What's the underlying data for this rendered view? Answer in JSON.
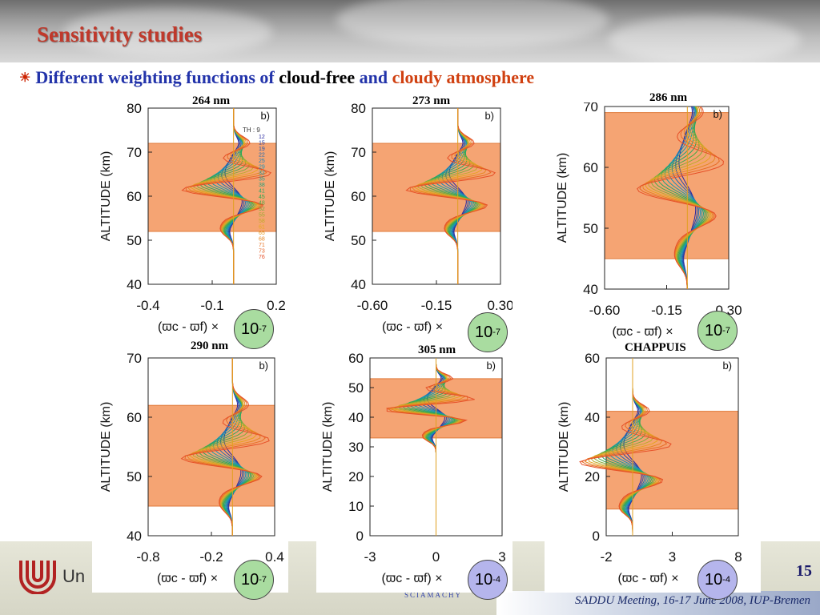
{
  "slide": {
    "title": "Sensitivity studies",
    "bullet": {
      "part1": "Different weighting functions of",
      "part2": "cloud-free",
      "part3": "and",
      "part4": "cloudy atmosphere"
    },
    "page_number": "15",
    "meeting": "SADDU Meeting, 16-17 June 2008, IUP-Bremen",
    "logo_text": "Un",
    "sciamachy": "SCIAMACHY"
  },
  "colors": {
    "title": "#c0392b",
    "bullet_blue": "#2233aa",
    "bullet_red": "#d04010",
    "cloud_band": "#f5a473",
    "badge_green": "#a9dca0",
    "badge_blue": "#b5b5ec"
  },
  "chart_data": [
    {
      "type": "line",
      "title": "264 nm",
      "panel_tag": "b)",
      "ylabel": "ALTITUDE (km)",
      "xlabel": "(ϖc - ϖf) ×",
      "scale_base": "10",
      "scale_exp": "-7",
      "badge_color": "green",
      "ylim": [
        40,
        80
      ],
      "yticks": [
        40,
        50,
        60,
        70,
        80
      ],
      "xlim": [
        -0.4,
        0.2
      ],
      "xticks": [
        "-0.4",
        "-0.1",
        "0.2"
      ],
      "cloud_band": [
        52,
        72
      ],
      "legend_title": "TH : 9",
      "legend": [
        "12",
        "15",
        "19",
        "22",
        "25",
        "29",
        "32",
        "35",
        "38",
        "41",
        "45",
        "48",
        "52",
        "55",
        "58",
        "61",
        "65",
        "68",
        "71",
        "73",
        "76"
      ]
    },
    {
      "type": "line",
      "title": "273 nm",
      "panel_tag": "b)",
      "ylabel": "ALTITUDE (km)",
      "xlabel": "(ϖc - ϖf) ×",
      "scale_base": "10",
      "scale_exp": "-7",
      "badge_color": "green",
      "ylim": [
        40,
        80
      ],
      "yticks": [
        40,
        50,
        60,
        70,
        80
      ],
      "xlim": [
        -0.6,
        0.3
      ],
      "xticks": [
        "-0.60",
        "-0.15",
        "0.30"
      ],
      "cloud_band": [
        52,
        72
      ]
    },
    {
      "type": "line",
      "title": "286 nm",
      "panel_tag": "b)",
      "ylabel": "ALTITUDE (km)",
      "xlabel": "(ϖc - ϖf) ×",
      "scale_base": "10",
      "scale_exp": "-7",
      "badge_color": "green",
      "ylim": [
        40,
        70
      ],
      "yticks": [
        40,
        50,
        60,
        70
      ],
      "xlim": [
        -0.6,
        0.3
      ],
      "xticks": [
        "-0.60",
        "-0.15",
        "0.30"
      ],
      "cloud_band": [
        45,
        69
      ]
    },
    {
      "type": "line",
      "title": "290 nm",
      "panel_tag": "b)",
      "ylabel": "ALTITUDE (km)",
      "xlabel": "(ϖc - ϖf) ×",
      "scale_base": "10",
      "scale_exp": "-7",
      "badge_color": "green",
      "ylim": [
        40,
        70
      ],
      "yticks": [
        40,
        50,
        60,
        70
      ],
      "xlim": [
        -0.8,
        0.4
      ],
      "xticks": [
        "-0.8",
        "-0.2",
        "0.4"
      ],
      "cloud_band": [
        45,
        62
      ]
    },
    {
      "type": "line",
      "title": "305 nm",
      "panel_tag": "b)",
      "ylabel": "ALTITUDE (km)",
      "xlabel": "(ϖc - ϖf) ×",
      "scale_base": "10",
      "scale_exp": "-4",
      "badge_color": "blue",
      "ylim": [
        0,
        60
      ],
      "yticks": [
        0,
        10,
        20,
        30,
        40,
        50,
        60
      ],
      "xlim": [
        -3,
        3
      ],
      "xticks": [
        "-3",
        "0",
        "3"
      ],
      "cloud_band": [
        33,
        53
      ]
    },
    {
      "type": "line",
      "title": "CHAPPUIS",
      "panel_tag": "b)",
      "ylabel": "ALTITUDE (km)",
      "xlabel": "(ϖc - ϖf) ×",
      "scale_base": "10",
      "scale_exp": "-4",
      "badge_color": "blue",
      "ylim": [
        0,
        60
      ],
      "yticks": [
        0,
        20,
        40,
        60
      ],
      "xlim": [
        -2,
        8
      ],
      "xticks": [
        "-2",
        "3",
        "8"
      ],
      "cloud_band": [
        9,
        42
      ]
    }
  ]
}
